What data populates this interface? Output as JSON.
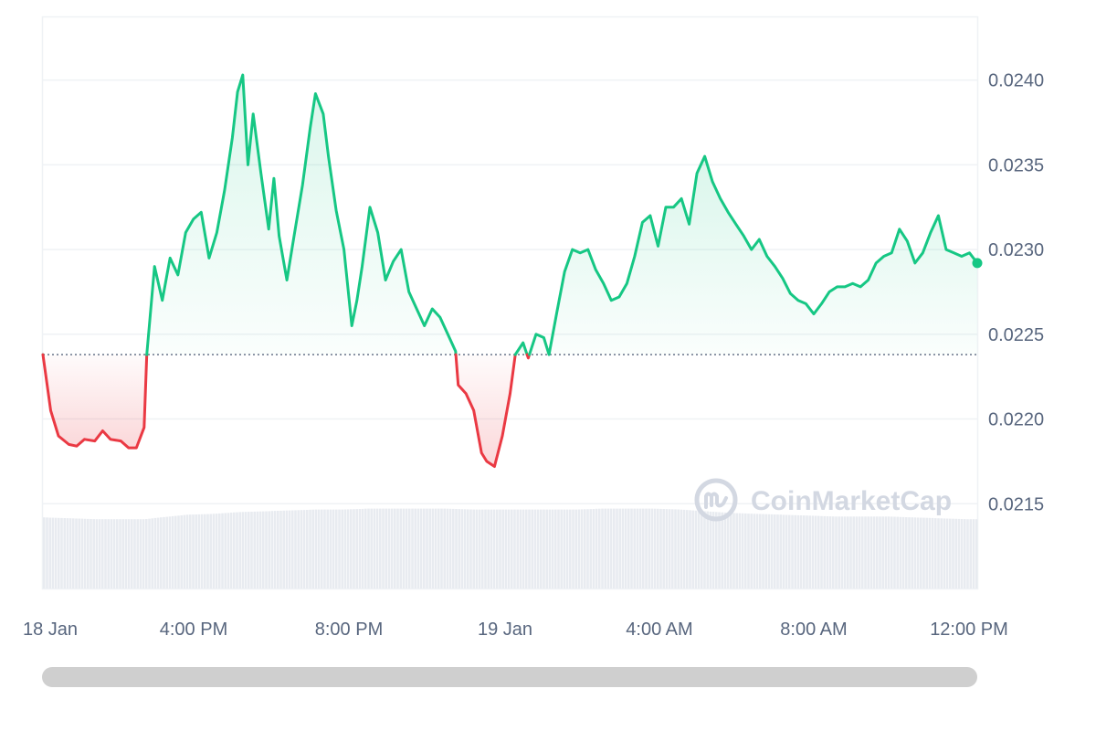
{
  "chart_data": {
    "type": "line",
    "title": "",
    "xlabel": "",
    "ylabel": "",
    "ylim": [
      0.021,
      0.02437
    ],
    "y_ticks": [
      "0.0240",
      "0.0235",
      "0.0230",
      "0.0225",
      "0.0220",
      "0.0215"
    ],
    "x_ticks": [
      "18 Jan",
      "4:00 PM",
      "8:00 PM",
      "19 Jan",
      "4:00 AM",
      "8:00 AM",
      "12:00 PM"
    ],
    "x_unit": "hours since 12:00 PM, 18 Jan",
    "baseline": 0.02238,
    "colors": {
      "up": "#16c784",
      "down": "#ea3943",
      "grid": "#eff2f5",
      "volume": "#e8ebf0"
    },
    "grid": true,
    "watermark": "CoinMarketCap",
    "series": [
      {
        "values": [
          [
            0.0,
            0.02238
          ],
          [
            0.3,
            0.02205
          ],
          [
            0.6,
            0.0219
          ],
          [
            1.0,
            0.02185
          ],
          [
            1.3,
            0.02184
          ],
          [
            1.6,
            0.02188
          ],
          [
            2.0,
            0.02187
          ],
          [
            2.3,
            0.02193
          ],
          [
            2.6,
            0.02188
          ],
          [
            3.0,
            0.02187
          ],
          [
            3.3,
            0.02183
          ],
          [
            3.6,
            0.02183
          ],
          [
            3.9,
            0.02195
          ],
          [
            4.0,
            0.02238
          ],
          [
            4.3,
            0.0229
          ],
          [
            4.6,
            0.0227
          ],
          [
            4.9,
            0.02295
          ],
          [
            5.2,
            0.02285
          ],
          [
            5.5,
            0.0231
          ],
          [
            5.8,
            0.02318
          ],
          [
            6.1,
            0.02322
          ],
          [
            6.4,
            0.02295
          ],
          [
            6.7,
            0.0231
          ],
          [
            7.0,
            0.02335
          ],
          [
            7.3,
            0.02366
          ],
          [
            7.5,
            0.02393
          ],
          [
            7.7,
            0.02403
          ],
          [
            7.9,
            0.0235
          ],
          [
            8.1,
            0.0238
          ],
          [
            8.4,
            0.02345
          ],
          [
            8.7,
            0.02312
          ],
          [
            8.9,
            0.02342
          ],
          [
            9.1,
            0.02308
          ],
          [
            9.4,
            0.02282
          ],
          [
            9.7,
            0.0231
          ],
          [
            10.0,
            0.02338
          ],
          [
            10.3,
            0.02372
          ],
          [
            10.5,
            0.02392
          ],
          [
            10.8,
            0.0238
          ],
          [
            11.0,
            0.02355
          ],
          [
            11.3,
            0.02323
          ],
          [
            11.6,
            0.023
          ],
          [
            11.9,
            0.02255
          ],
          [
            12.1,
            0.0227
          ],
          [
            12.3,
            0.0229
          ],
          [
            12.6,
            0.02325
          ],
          [
            12.9,
            0.0231
          ],
          [
            13.2,
            0.02282
          ],
          [
            13.5,
            0.02293
          ],
          [
            13.8,
            0.023
          ],
          [
            14.1,
            0.02275
          ],
          [
            14.4,
            0.02265
          ],
          [
            14.7,
            0.02255
          ],
          [
            15.0,
            0.02265
          ],
          [
            15.3,
            0.0226
          ],
          [
            15.6,
            0.0225
          ],
          [
            15.9,
            0.0224
          ],
          [
            16.0,
            0.0222
          ],
          [
            16.3,
            0.02215
          ],
          [
            16.6,
            0.02205
          ],
          [
            16.9,
            0.0218
          ],
          [
            17.1,
            0.02175
          ],
          [
            17.4,
            0.02172
          ],
          [
            17.7,
            0.0219
          ],
          [
            18.0,
            0.02215
          ],
          [
            18.2,
            0.02238
          ],
          [
            18.5,
            0.02245
          ],
          [
            18.7,
            0.02236
          ],
          [
            19.0,
            0.0225
          ],
          [
            19.3,
            0.02248
          ],
          [
            19.5,
            0.02238
          ],
          [
            19.8,
            0.02263
          ],
          [
            20.1,
            0.02287
          ],
          [
            20.4,
            0.023
          ],
          [
            20.7,
            0.02298
          ],
          [
            21.0,
            0.023
          ],
          [
            21.3,
            0.02288
          ],
          [
            21.6,
            0.0228
          ],
          [
            21.9,
            0.0227
          ],
          [
            22.2,
            0.02272
          ],
          [
            22.5,
            0.0228
          ],
          [
            22.8,
            0.02296
          ],
          [
            23.1,
            0.02316
          ],
          [
            23.4,
            0.0232
          ],
          [
            23.7,
            0.02302
          ],
          [
            24.0,
            0.02325
          ],
          [
            24.3,
            0.02325
          ],
          [
            24.6,
            0.0233
          ],
          [
            24.9,
            0.02315
          ],
          [
            25.2,
            0.02345
          ],
          [
            25.5,
            0.02355
          ],
          [
            25.8,
            0.0234
          ],
          [
            26.1,
            0.0233
          ],
          [
            26.4,
            0.02322
          ],
          [
            26.7,
            0.02315
          ],
          [
            27.0,
            0.02308
          ],
          [
            27.3,
            0.023
          ],
          [
            27.6,
            0.02306
          ],
          [
            27.9,
            0.02296
          ],
          [
            28.2,
            0.0229
          ],
          [
            28.5,
            0.02283
          ],
          [
            28.8,
            0.02274
          ],
          [
            29.1,
            0.0227
          ],
          [
            29.4,
            0.02268
          ],
          [
            29.7,
            0.02262
          ],
          [
            30.0,
            0.02268
          ],
          [
            30.3,
            0.02275
          ],
          [
            30.6,
            0.02278
          ],
          [
            30.9,
            0.02278
          ],
          [
            31.2,
            0.0228
          ],
          [
            31.5,
            0.02278
          ],
          [
            31.8,
            0.02282
          ],
          [
            32.1,
            0.02292
          ],
          [
            32.4,
            0.02296
          ],
          [
            32.7,
            0.02298
          ],
          [
            33.0,
            0.02312
          ],
          [
            33.3,
            0.02305
          ],
          [
            33.6,
            0.02292
          ],
          [
            33.9,
            0.02298
          ],
          [
            34.2,
            0.0231
          ],
          [
            34.5,
            0.0232
          ],
          [
            34.8,
            0.023
          ],
          [
            35.1,
            0.02298
          ],
          [
            35.4,
            0.02296
          ],
          [
            35.7,
            0.02298
          ],
          [
            36.0,
            0.02292
          ]
        ]
      }
    ],
    "volume": {
      "values": [
        [
          0.0,
          0.81
        ],
        [
          1.0,
          0.8
        ],
        [
          2.0,
          0.79
        ],
        [
          3.0,
          0.79
        ],
        [
          3.9,
          0.79
        ],
        [
          4.5,
          0.81
        ],
        [
          5.5,
          0.84
        ],
        [
          6.5,
          0.85
        ],
        [
          7.5,
          0.87
        ],
        [
          8.5,
          0.88
        ],
        [
          9.5,
          0.89
        ],
        [
          10.5,
          0.9
        ],
        [
          11.5,
          0.9
        ],
        [
          12.5,
          0.91
        ],
        [
          13.5,
          0.91
        ],
        [
          14.5,
          0.91
        ],
        [
          15.5,
          0.91
        ],
        [
          16.5,
          0.9
        ],
        [
          17.5,
          0.9
        ],
        [
          18.5,
          0.9
        ],
        [
          19.5,
          0.9
        ],
        [
          20.5,
          0.9
        ],
        [
          21.5,
          0.91
        ],
        [
          22.5,
          0.91
        ],
        [
          23.5,
          0.91
        ],
        [
          24.5,
          0.9
        ],
        [
          25.5,
          0.88
        ],
        [
          26.5,
          0.86
        ],
        [
          27.5,
          0.85
        ],
        [
          28.5,
          0.84
        ],
        [
          29.5,
          0.83
        ],
        [
          30.5,
          0.82
        ],
        [
          31.5,
          0.82
        ],
        [
          32.5,
          0.82
        ],
        [
          33.5,
          0.81
        ],
        [
          34.5,
          0.8
        ],
        [
          35.5,
          0.79
        ],
        [
          36.0,
          0.79
        ]
      ]
    }
  },
  "scrollbar": {
    "label": "chart-range-scrollbar"
  }
}
